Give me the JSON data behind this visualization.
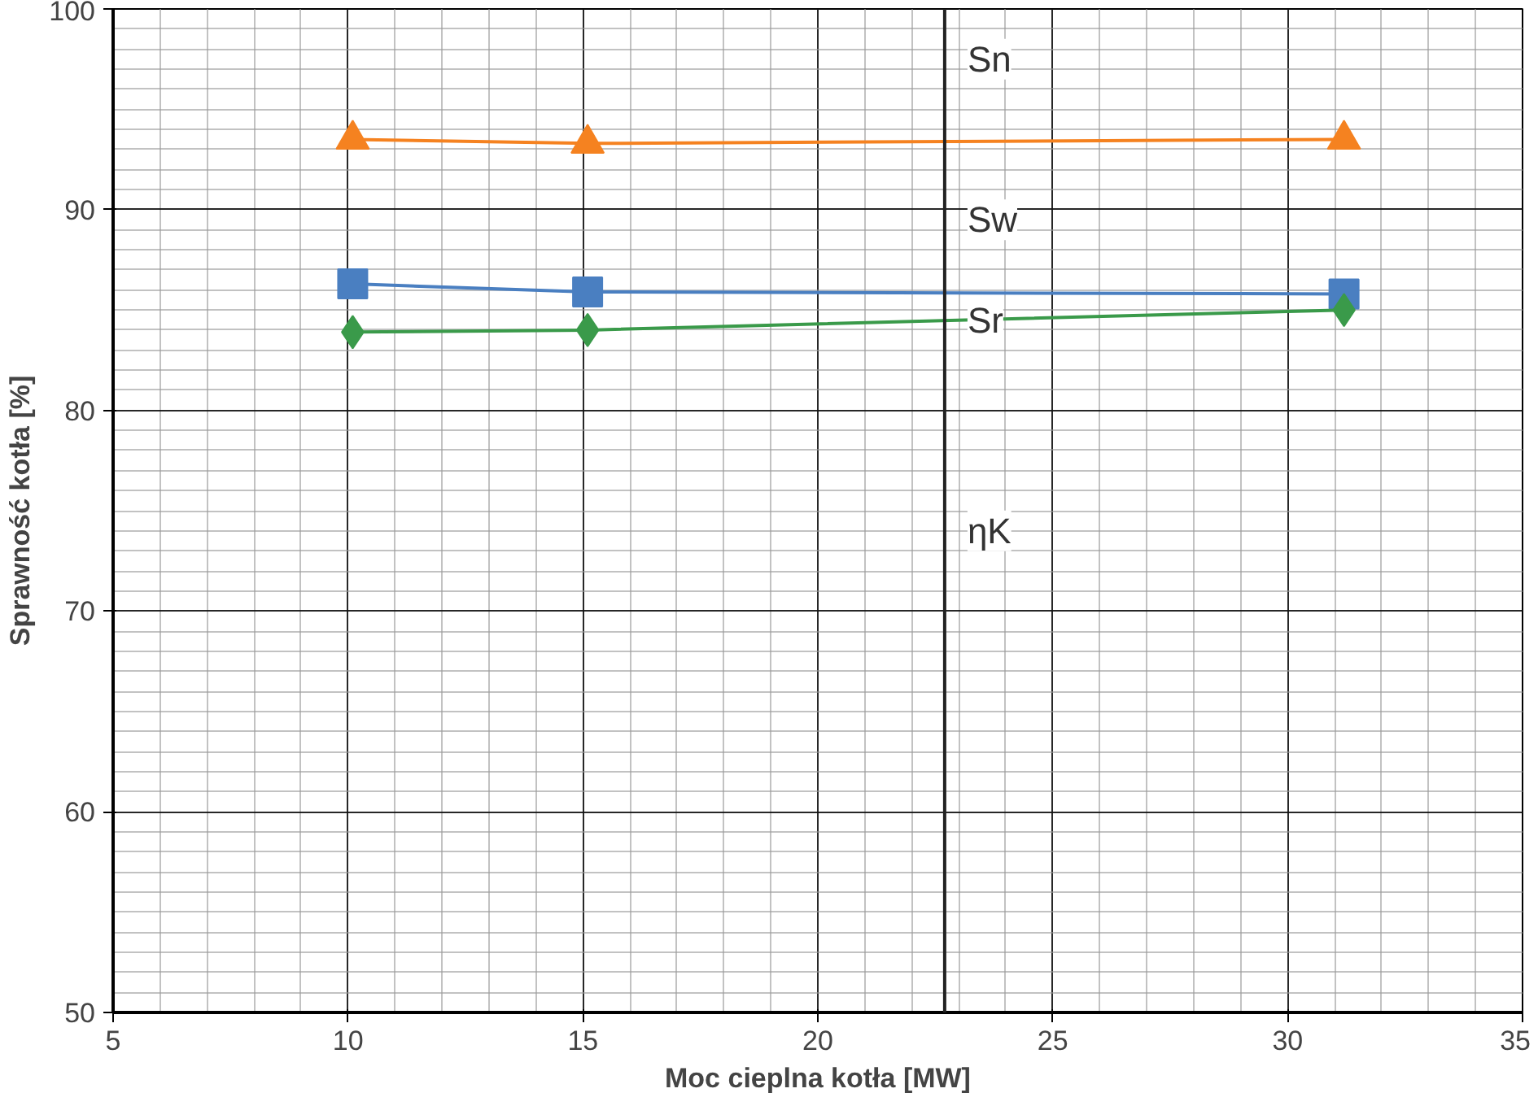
{
  "chart_data": {
    "type": "line",
    "xlabel": "Moc cieplna kotła [MW]",
    "ylabel": "Sprawność kotła [%]",
    "x": [
      10.1,
      15.1,
      31.2
    ],
    "series": [
      {
        "color": "#f58220",
        "marker": "triangle",
        "values": [
          93.5,
          93.3,
          93.5
        ]
      },
      {
        "color": "#4a7fc1",
        "marker": "square",
        "values": [
          86.3,
          85.9,
          85.8
        ]
      },
      {
        "color": "#3a9a4a",
        "marker": "diamond",
        "values": [
          83.9,
          84.0,
          85.0
        ]
      }
    ],
    "xlim": [
      5,
      35
    ],
    "xticks": [
      5,
      10,
      15,
      20,
      25,
      30,
      35
    ],
    "ylim": [
      50,
      100
    ],
    "yticks": [
      50,
      60,
      70,
      80,
      90,
      100
    ],
    "grid": true,
    "ref_lines": [
      {
        "axis": "x",
        "value": 22.7,
        "label": null,
        "color": "#222222"
      }
    ],
    "annotations": [
      "Sn",
      "Sw",
      "Sr",
      "ηK"
    ]
  }
}
